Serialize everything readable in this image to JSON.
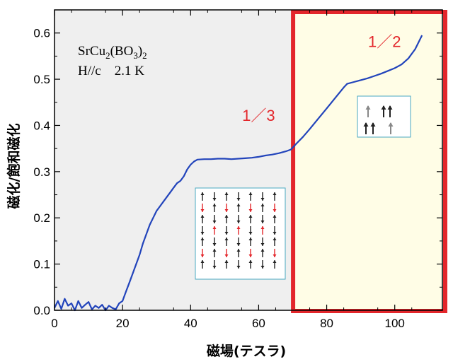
{
  "chart_data": {
    "type": "line",
    "title": "",
    "xlabel": "磁場(テスラ)",
    "ylabel": "磁化/飽和磁化",
    "xlim": [
      0,
      114
    ],
    "ylim": [
      0,
      0.65
    ],
    "xticks": [
      0,
      20,
      40,
      60,
      80,
      100
    ],
    "yticks": [
      0.0,
      0.1,
      0.2,
      0.3,
      0.4,
      0.5,
      0.6
    ],
    "xtick_labels": [
      "0",
      "20",
      "40",
      "60",
      "80",
      "100"
    ],
    "ytick_labels": [
      "0.0",
      "0.1",
      "0.2",
      "0.3",
      "0.4",
      "0.5",
      "0.6"
    ],
    "grid": false,
    "sample": {
      "compound_prefix": "SrCu",
      "compound_sub1": "2",
      "compound_mid": "(BO",
      "compound_sub2": "3",
      "compound_end": ")",
      "compound_sub3": "2",
      "condition": "H//c    2.1 K"
    },
    "annotations": [
      {
        "text": "1／3",
        "x": 60,
        "y": 0.41
      },
      {
        "text": "1／2",
        "x": 97,
        "y": 0.57
      }
    ],
    "regions": [
      {
        "x_start": 0,
        "x_end": 69.5,
        "fill": "#efefef",
        "border": "none"
      },
      {
        "x_start": 69.5,
        "x_end": 114,
        "fill": "#fffde6",
        "border": "#e3262b"
      }
    ],
    "series": [
      {
        "color": "#2244bb",
        "x": [
          0,
          1,
          2,
          3,
          4,
          5,
          6,
          7,
          8,
          9,
          10,
          11,
          12,
          13,
          14,
          15,
          16,
          17,
          18,
          19,
          20,
          21,
          22,
          23,
          24,
          25,
          26,
          27,
          28,
          29,
          30,
          31,
          32,
          33,
          34,
          35,
          36,
          37,
          38,
          39,
          40,
          41,
          42,
          44,
          46,
          48,
          50,
          52,
          54,
          56,
          58,
          60,
          62,
          64,
          66,
          68,
          69.5,
          71,
          73,
          75,
          77,
          79,
          81,
          83,
          85,
          86,
          88,
          90,
          92,
          94,
          96,
          98,
          100,
          102,
          104,
          106,
          107,
          108
        ],
        "y": [
          0.005,
          0.02,
          0.003,
          0.025,
          0.01,
          0.015,
          0.0,
          0.02,
          0.005,
          0.012,
          0.018,
          0.002,
          0.01,
          0.005,
          0.012,
          0.0,
          0.01,
          0.005,
          0.002,
          0.015,
          0.02,
          0.04,
          0.06,
          0.08,
          0.1,
          0.12,
          0.145,
          0.165,
          0.185,
          0.2,
          0.215,
          0.225,
          0.235,
          0.245,
          0.255,
          0.265,
          0.275,
          0.28,
          0.29,
          0.305,
          0.315,
          0.322,
          0.326,
          0.327,
          0.327,
          0.328,
          0.328,
          0.327,
          0.328,
          0.329,
          0.33,
          0.332,
          0.335,
          0.337,
          0.34,
          0.344,
          0.348,
          0.36,
          0.375,
          0.392,
          0.41,
          0.428,
          0.446,
          0.464,
          0.482,
          0.49,
          0.494,
          0.498,
          0.502,
          0.507,
          0.512,
          0.518,
          0.524,
          0.532,
          0.545,
          0.565,
          0.58,
          0.595
        ]
      }
    ]
  }
}
